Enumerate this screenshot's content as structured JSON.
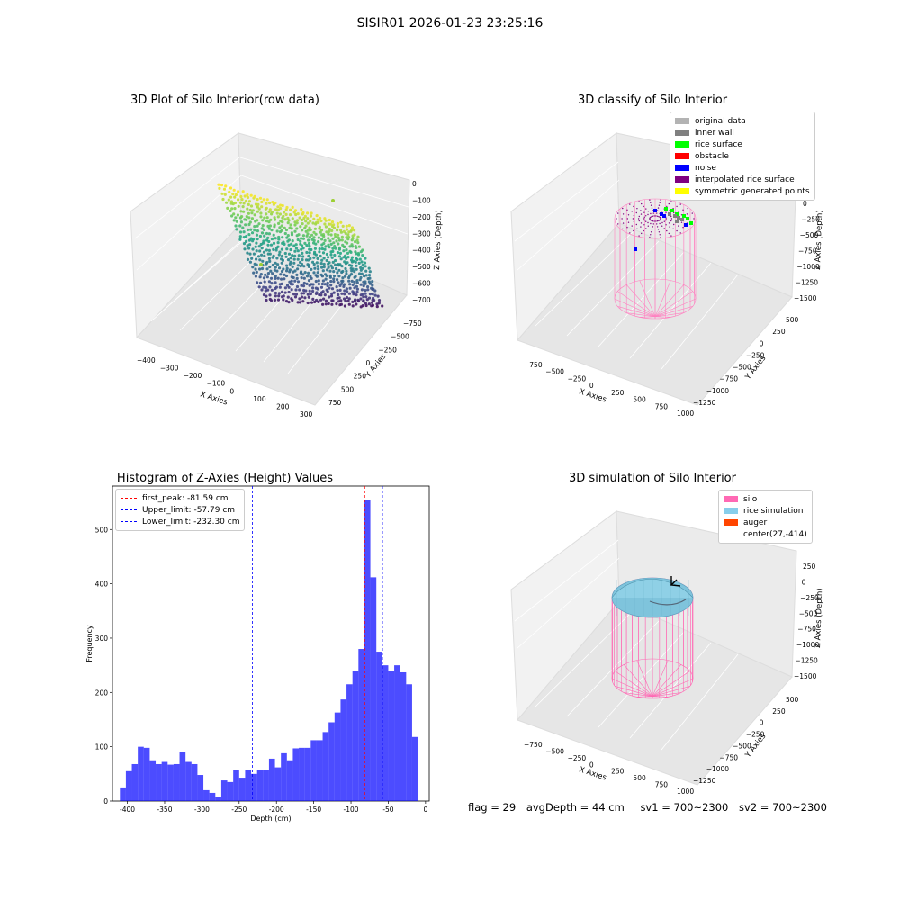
{
  "suptitle": "SISIR01 2026-01-23 23:25:16",
  "panels": {
    "raw": {
      "title": "3D Plot of Silo Interior(row data)",
      "xlabel": "X Axies",
      "ylabel": "Y Axies",
      "zlabel": "Z Axies (Depth)",
      "xticks": [
        "−400",
        "−300",
        "−200",
        "−100",
        "0",
        "100",
        "200",
        "300"
      ],
      "yticks": [
        "−750",
        "−500",
        "−250",
        "0",
        "250",
        "500",
        "750"
      ],
      "zticks": [
        "0",
        "−100",
        "−200",
        "−300",
        "−400",
        "−500",
        "−600",
        "−700"
      ]
    },
    "classify": {
      "title": "3D classify of Silo Interior",
      "xlabel": "X Axies",
      "ylabel": "Y Axies",
      "zlabel": "Z Axies (Depth)",
      "xticks": [
        "−750",
        "−500",
        "−250",
        "0",
        "250",
        "500",
        "750",
        "1000"
      ],
      "yticks": [
        "−1250",
        "−1000",
        "−750",
        "−500",
        "−250",
        "0",
        "250",
        "500"
      ],
      "zticks": [
        "0",
        "−250",
        "−500",
        "−750",
        "−1000",
        "−1250",
        "−1500"
      ],
      "legend": [
        {
          "label": "original data",
          "color": "#b3b3b3"
        },
        {
          "label": "inner wall",
          "color": "#808080"
        },
        {
          "label": "rice surface",
          "color": "#00ff00"
        },
        {
          "label": "obstacle",
          "color": "#ff0000"
        },
        {
          "label": "noise",
          "color": "#0000ff"
        },
        {
          "label": "interpolated rice surface",
          "color": "#800080"
        },
        {
          "label": "symmetric generated points",
          "color": "#ffff00"
        }
      ]
    },
    "sim": {
      "title": "3D simulation of Silo Interior",
      "xlabel": "X Axies",
      "ylabel": "Y Axies",
      "zlabel": "Z Axies (Depth)",
      "xticks": [
        "−750",
        "−500",
        "−250",
        "0",
        "250",
        "500",
        "750",
        "1000"
      ],
      "yticks": [
        "−1250",
        "−1000",
        "−750",
        "−500",
        "−250",
        "0",
        "250",
        "500"
      ],
      "zticks": [
        "250",
        "0",
        "−250",
        "−500",
        "−750",
        "−1000",
        "−1250",
        "−1500"
      ],
      "legend": [
        {
          "label": "silo",
          "color": "#ff69b4"
        },
        {
          "label": "rice simulation",
          "color": "#87ceeb"
        },
        {
          "label": "auger",
          "color": "#ff4500"
        },
        {
          "label": "center(27,-414)",
          "color": ""
        }
      ]
    }
  },
  "chart_data": {
    "type": "bar",
    "title": "Histogram of Z-Axies (Height) Values",
    "xlabel": "Depth (cm)",
    "ylabel": "Frequency",
    "xlim": [
      -420,
      5
    ],
    "ylim": [
      0,
      580
    ],
    "xticks": [
      -400,
      -350,
      -300,
      -250,
      -200,
      -150,
      -100,
      -50,
      0
    ],
    "yticks": [
      0,
      100,
      200,
      300,
      400,
      500
    ],
    "bar_color": "#0000ff",
    "bin_start": -410,
    "bin_width": 8,
    "values": [
      25,
      55,
      68,
      100,
      98,
      75,
      68,
      72,
      67,
      68,
      90,
      72,
      68,
      48,
      20,
      15,
      8,
      38,
      35,
      57,
      43,
      58,
      50,
      57,
      58,
      78,
      62,
      88,
      75,
      97,
      98,
      98,
      112,
      112,
      127,
      145,
      163,
      187,
      215,
      240,
      280,
      555,
      412,
      275,
      250,
      240,
      250,
      237,
      215,
      118
    ],
    "vlines": [
      {
        "label": "first_peak: -81.59 cm",
        "x": -81.59,
        "color": "#ff0000"
      },
      {
        "label": "Upper_limit: -57.79 cm",
        "x": -57.79,
        "color": "#0000ff"
      },
      {
        "label": "Lower_limit: -232.30 cm",
        "x": -232.3,
        "color": "#0000ff"
      }
    ]
  },
  "footer": {
    "flag": "flag = 29",
    "avg": "avgDepth = 44 cm",
    "sv1": "sv1 = 700~2300",
    "sv2": "sv2 = 700~2300"
  }
}
